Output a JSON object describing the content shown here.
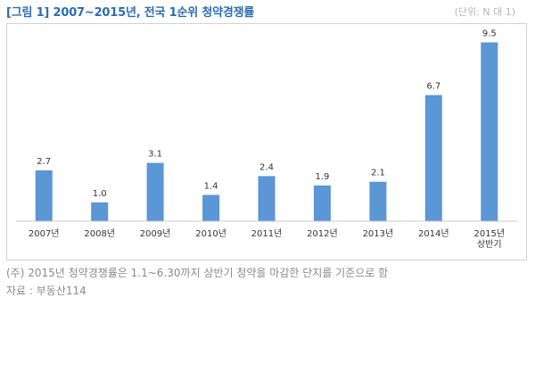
{
  "header": {
    "title": "[그림 1] 2007~2015년, 전국 1순위 청약경쟁률",
    "unit": "(단위: N 대 1)"
  },
  "chart_data": {
    "type": "bar",
    "title": "",
    "xlabel": "",
    "ylabel": "",
    "categories": [
      "2007년",
      "2008년",
      "2009년",
      "2010년",
      "2011년",
      "2012년",
      "2013년",
      "2014년",
      "2015년\n상반기"
    ],
    "series": [
      {
        "values": [
          2.7,
          1.0,
          3.1,
          1.4,
          2.4,
          1.9,
          2.1,
          6.7,
          9.5
        ]
      }
    ],
    "ylim": [
      0,
      10
    ],
    "grid": false,
    "data_labels": true,
    "bar_color": "#5b96d5"
  },
  "footnotes": {
    "note": "(주) 2015년 청약경쟁률은 1.1~6.30까지 상반기 청약을 마감한 단지를 기준으로 함",
    "source": "자료 : 부동산114"
  }
}
